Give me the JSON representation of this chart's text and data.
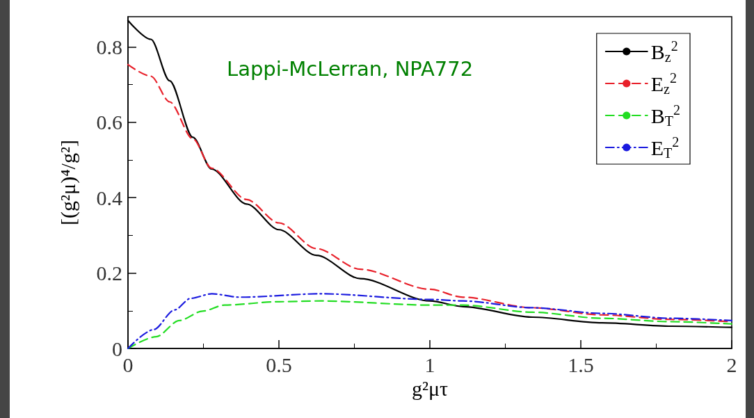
{
  "chart_data": {
    "type": "line",
    "xlabel": "g²μτ",
    "ylabel": "[(g²μ)⁴/g²]",
    "annotations": [
      "Lappi-McLerran, NPA772"
    ],
    "xlim": [
      0,
      2
    ],
    "xticks": [
      0,
      0.5,
      1,
      1.5,
      2
    ],
    "ylim": [
      0,
      0.88
    ],
    "yticks": [
      0,
      0.2,
      0.4,
      0.6,
      0.8
    ],
    "grid": false,
    "legend": "top right",
    "marker": "none",
    "series": [
      {
        "name": "B$_{z}$$^{2}$",
        "color": "#000000",
        "line_style": "solid",
        "x": [
          0,
          0.076,
          0.138,
          0.215,
          0.277,
          0.393,
          0.5,
          0.624,
          0.77,
          1.0,
          1.11,
          1.34,
          1.57,
          1.8,
          2.0
        ],
        "values": [
          0.87,
          0.82,
          0.71,
          0.56,
          0.476,
          0.383,
          0.315,
          0.247,
          0.185,
          0.126,
          0.111,
          0.083,
          0.068,
          0.059,
          0.056
        ]
      },
      {
        "name": "E$_{z}$$^{2}$",
        "color": "#e8202a",
        "line_style": "dashed",
        "x": [
          0,
          0.076,
          0.138,
          0.215,
          0.277,
          0.393,
          0.5,
          0.624,
          0.77,
          1.0,
          1.11,
          1.34,
          1.57,
          1.8,
          2.0
        ],
        "values": [
          0.753,
          0.722,
          0.654,
          0.556,
          0.478,
          0.395,
          0.333,
          0.265,
          0.21,
          0.157,
          0.136,
          0.108,
          0.089,
          0.077,
          0.071
        ]
      },
      {
        "name": "B$_{T}$$^{2}$",
        "color": "#22dd22",
        "line_style": "dashed",
        "x": [
          0,
          0.093,
          0.17,
          0.247,
          0.32,
          0.5,
          0.64,
          1.0,
          1.11,
          1.34,
          1.57,
          1.8,
          2.0
        ],
        "values": [
          0,
          0.031,
          0.074,
          0.099,
          0.115,
          0.124,
          0.126,
          0.115,
          0.115,
          0.096,
          0.08,
          0.071,
          0.065
        ]
      },
      {
        "name": "E$_{T}$$^{2}$",
        "color": "#1a1adf",
        "line_style": "dashdot",
        "x": [
          0,
          0.085,
          0.154,
          0.208,
          0.278,
          0.37,
          0.64,
          1.0,
          1.11,
          1.34,
          1.57,
          1.8,
          2.0
        ],
        "values": [
          0,
          0.05,
          0.102,
          0.133,
          0.145,
          0.136,
          0.145,
          0.13,
          0.126,
          0.108,
          0.093,
          0.08,
          0.074
        ]
      }
    ]
  }
}
